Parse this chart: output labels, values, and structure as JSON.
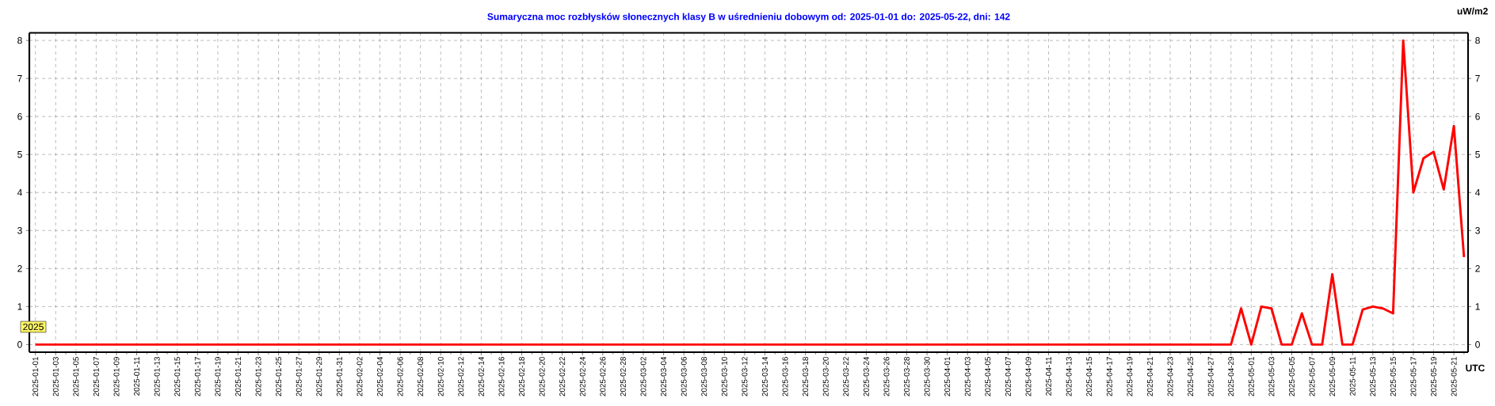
{
  "chart_data": {
    "type": "line",
    "title": "Sumaryczna moc rozbłysków słonecznych klasy B w uśrednieniu dobowym od: 2025-01-01 do: 2025-05-22, dni: 142",
    "y2label": "uW/m2",
    "xlabel": "UTC",
    "annotations": [
      "2025"
    ],
    "categories": [
      "2025-01-01",
      null,
      "2025-01-03",
      null,
      "2025-01-05",
      null,
      "2025-01-07",
      null,
      "2025-01-09",
      null,
      "2025-01-11",
      null,
      "2025-01-13",
      null,
      "2025-01-15",
      null,
      "2025-01-17",
      null,
      "2025-01-19",
      null,
      "2025-01-21",
      null,
      "2025-01-23",
      null,
      "2025-01-25",
      null,
      "2025-01-27",
      null,
      "2025-01-29",
      null,
      "2025-01-31",
      null,
      "2025-02-02",
      null,
      "2025-02-04",
      null,
      "2025-02-06",
      null,
      "2025-02-08",
      null,
      "2025-02-10",
      null,
      "2025-02-12",
      null,
      "2025-02-14",
      null,
      "2025-02-16",
      null,
      "2025-02-18",
      null,
      "2025-02-20",
      null,
      "2025-02-22",
      null,
      "2025-02-24",
      null,
      "2025-02-26",
      null,
      "2025-02-28",
      null,
      "2025-03-02",
      null,
      "2025-03-04",
      null,
      "2025-03-06",
      null,
      "2025-03-08",
      null,
      "2025-03-10",
      null,
      "2025-03-12",
      null,
      "2025-03-14",
      null,
      "2025-03-16",
      null,
      "2025-03-18",
      null,
      "2025-03-20",
      null,
      "2025-03-22",
      null,
      "2025-03-24",
      null,
      "2025-03-26",
      null,
      "2025-03-28",
      null,
      "2025-03-30",
      null,
      "2025-04-01",
      null,
      "2025-04-03",
      null,
      "2025-04-05",
      null,
      "2025-04-07",
      null,
      "2025-04-09",
      null,
      "2025-04-11",
      null,
      "2025-04-13",
      null,
      "2025-04-15",
      null,
      "2025-04-17",
      null,
      "2025-04-19",
      null,
      "2025-04-21",
      null,
      "2025-04-23",
      null,
      "2025-04-25",
      null,
      "2025-04-27",
      null,
      "2025-04-29",
      null,
      "2025-05-01",
      null,
      "2025-05-03",
      null,
      "2025-05-05",
      null,
      "2025-05-07",
      null,
      "2025-05-09",
      null,
      "2025-05-11",
      null,
      "2025-05-13",
      null,
      "2025-05-15",
      null,
      "2025-05-17",
      null,
      "2025-05-19",
      null,
      "2025-05-21",
      null
    ],
    "series": [
      {
        "color": "#ff0000",
        "values": [
          0,
          0,
          0,
          0,
          0,
          0,
          0,
          0,
          0,
          0,
          0,
          0,
          0,
          0,
          0,
          0,
          0,
          0,
          0,
          0,
          0,
          0,
          0,
          0,
          0,
          0,
          0,
          0,
          0,
          0,
          0,
          0,
          0,
          0,
          0,
          0,
          0,
          0,
          0,
          0,
          0,
          0,
          0,
          0,
          0,
          0,
          0,
          0,
          0,
          0,
          0,
          0,
          0,
          0,
          0,
          0,
          0,
          0,
          0,
          0,
          0,
          0,
          0,
          0,
          0,
          0,
          0,
          0,
          0,
          0,
          0,
          0,
          0,
          0,
          0,
          0,
          0,
          0,
          0,
          0,
          0,
          0,
          0,
          0,
          0,
          0,
          0,
          0,
          0,
          0,
          0,
          0,
          0,
          0,
          0,
          0,
          0,
          0,
          0,
          0,
          0,
          0,
          0,
          0,
          0,
          0,
          0,
          0,
          0,
          0,
          0,
          0,
          0,
          0,
          0,
          0,
          0,
          0,
          0,
          0.95,
          0,
          1.0,
          0.95,
          0,
          0,
          0.82,
          0,
          0,
          1.85,
          0,
          0,
          0.92,
          1.0,
          0.95,
          0.82,
          8.0,
          4.0,
          4.9,
          5.07,
          4.08,
          5.75,
          2.3
        ]
      }
    ],
    "ylim": [
      -0.2,
      8.2
    ],
    "yticks": [
      0,
      1,
      2,
      3,
      4,
      5,
      6,
      7,
      8
    ],
    "y2lim": [
      -0.2,
      8.2
    ],
    "y2ticks": [
      0,
      1,
      2,
      3,
      4,
      5,
      6,
      7,
      8
    ],
    "grid": true
  }
}
